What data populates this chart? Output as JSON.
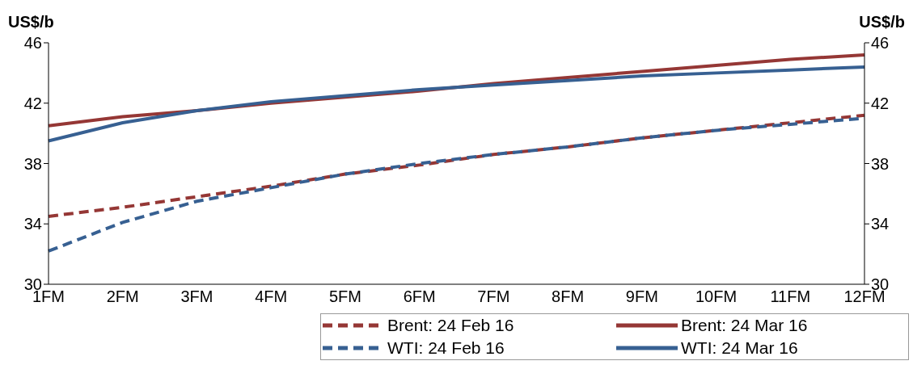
{
  "chart_data": {
    "type": "line",
    "ylabel": "US$/b",
    "y2label": "US$/b",
    "categories": [
      "1FM",
      "2FM",
      "3FM",
      "4FM",
      "5FM",
      "6FM",
      "7FM",
      "8FM",
      "9FM",
      "10FM",
      "11FM",
      "12FM"
    ],
    "series": [
      {
        "name": "Brent: 24 Feb 16",
        "color": "#953735",
        "line_style": "dashed",
        "values": [
          34.5,
          35.1,
          35.8,
          36.5,
          37.3,
          37.9,
          38.6,
          39.1,
          39.7,
          40.2,
          40.7,
          41.2
        ]
      },
      {
        "name": "Brent: 24 Mar 16",
        "color": "#953735",
        "line_style": "solid",
        "values": [
          40.5,
          41.1,
          41.5,
          42.0,
          42.4,
          42.8,
          43.3,
          43.7,
          44.1,
          44.5,
          44.9,
          45.2
        ]
      },
      {
        "name": "WTI: 24 Feb 16",
        "color": "#376092",
        "line_style": "dashed",
        "values": [
          32.2,
          34.1,
          35.5,
          36.4,
          37.3,
          38.0,
          38.6,
          39.1,
          39.7,
          40.2,
          40.6,
          41.0
        ]
      },
      {
        "name": "WTI: 24 Mar 16",
        "color": "#376092",
        "line_style": "solid",
        "values": [
          39.5,
          40.7,
          41.5,
          42.1,
          42.5,
          42.9,
          43.2,
          43.5,
          43.8,
          44.0,
          44.2,
          44.4
        ]
      }
    ],
    "ylim": [
      30,
      46
    ],
    "yticks": [
      30,
      34,
      38,
      42,
      46
    ],
    "y2lim": [
      30,
      46
    ],
    "y2ticks": [
      30,
      34,
      38,
      42,
      46
    ],
    "grid": false,
    "legend": "bottom",
    "marker": "none"
  }
}
